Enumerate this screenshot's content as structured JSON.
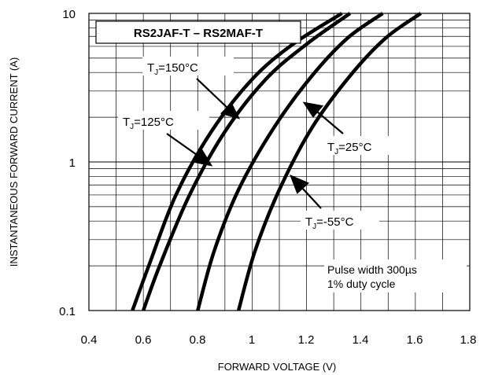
{
  "chart_data": {
    "type": "line",
    "title": "RS2JAF-T – RS2MAF-T",
    "xlabel": "FORWARD VOLTAGE (V)",
    "ylabel": "INSTANTANEOUS FORWARD CURRENT (A)",
    "xlim": [
      0.4,
      1.8
    ],
    "ylim": [
      0.1,
      10
    ],
    "yscale": "log",
    "grid": true,
    "x_ticks": [
      "0.4",
      "0.6",
      "0.8",
      "1",
      "1.2",
      "1.4",
      "1.6",
      "1.8"
    ],
    "y_ticks": [
      "0.1",
      "1",
      "10"
    ],
    "note_lines": [
      "Pulse width 300µs",
      "1% duty cycle"
    ],
    "series": [
      {
        "name": "T_J=150°C",
        "label_main": "T",
        "label_sub": "J",
        "label_rest": "=150°C",
        "points": [
          [
            0.56,
            0.1
          ],
          [
            0.62,
            0.2
          ],
          [
            0.72,
            0.6
          ],
          [
            0.85,
            1.6
          ],
          [
            1.0,
            3.6
          ],
          [
            1.15,
            6.2
          ],
          [
            1.33,
            10
          ]
        ]
      },
      {
        "name": "T_J=125°C",
        "label_main": "T",
        "label_sub": "J",
        "label_rest": "=125°C",
        "points": [
          [
            0.6,
            0.1
          ],
          [
            0.66,
            0.2
          ],
          [
            0.77,
            0.6
          ],
          [
            0.9,
            1.6
          ],
          [
            1.05,
            3.6
          ],
          [
            1.2,
            6.2
          ],
          [
            1.36,
            10
          ]
        ]
      },
      {
        "name": "T_J=25°C",
        "label_main": "T",
        "label_sub": "J",
        "label_rest": "=25°C",
        "points": [
          [
            0.8,
            0.1
          ],
          [
            0.86,
            0.25
          ],
          [
            0.95,
            0.65
          ],
          [
            1.08,
            1.7
          ],
          [
            1.22,
            3.8
          ],
          [
            1.35,
            6.8
          ],
          [
            1.48,
            10
          ]
        ]
      },
      {
        "name": "T_J=-55°C",
        "label_main": "T",
        "label_sub": "J",
        "label_rest": "=-55°C",
        "points": [
          [
            0.95,
            0.1
          ],
          [
            1.01,
            0.25
          ],
          [
            1.1,
            0.65
          ],
          [
            1.22,
            1.7
          ],
          [
            1.36,
            3.8
          ],
          [
            1.49,
            6.8
          ],
          [
            1.62,
            10
          ]
        ]
      }
    ]
  }
}
